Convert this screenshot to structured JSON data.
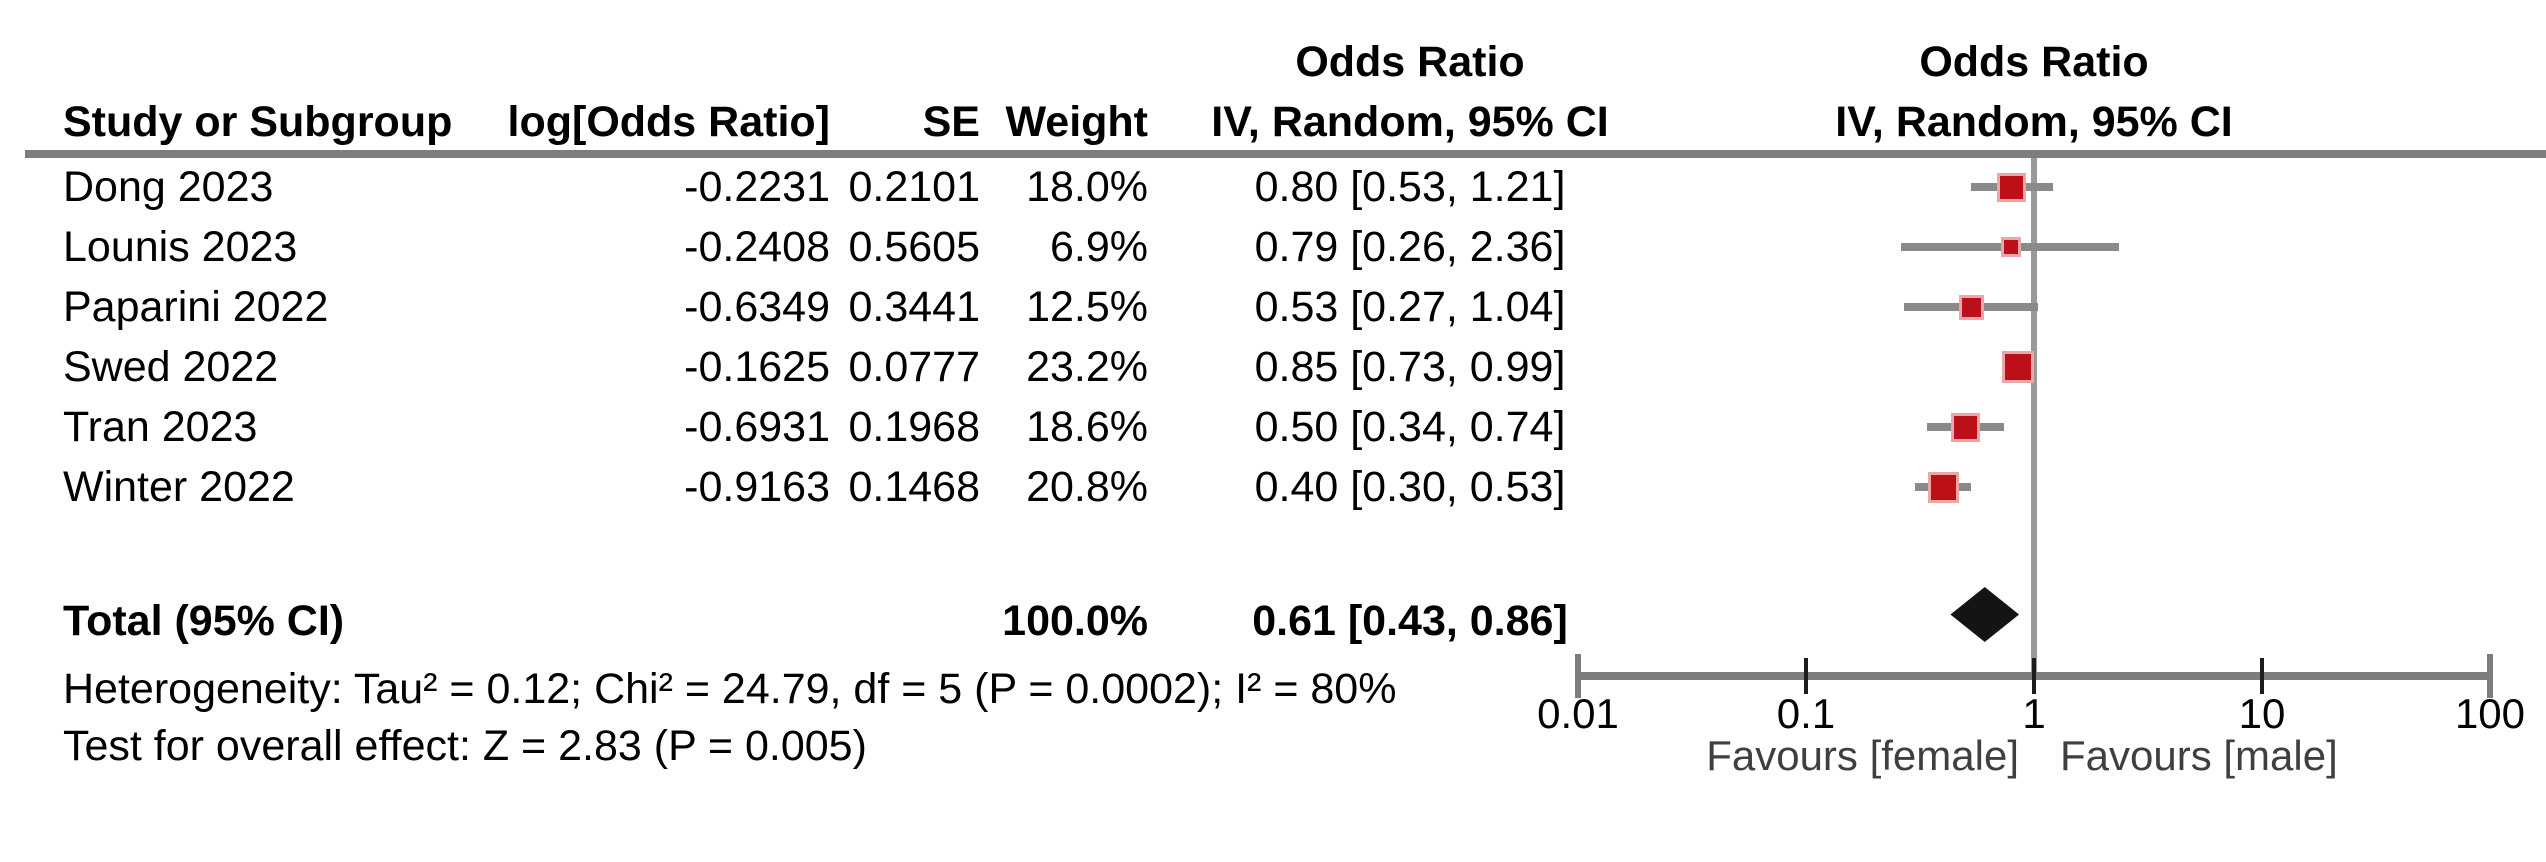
{
  "header": {
    "left_effect_title": "Odds Ratio",
    "right_effect_title": "Odds Ratio",
    "columns": {
      "study": "Study or Subgroup",
      "log_or": "log[Odds Ratio]",
      "se": "SE",
      "weight": "Weight",
      "left_method": "IV, Random, 95% CI",
      "right_method": "IV, Random, 95% CI"
    }
  },
  "studies": [
    {
      "name": "Dong 2023",
      "log_or": "-0.2231",
      "se": "0.2101",
      "weight": "18.0%",
      "weight_pct": 18.0,
      "ci_text": "0.80 [0.53, 1.21]",
      "or": 0.8,
      "ci_low": 0.53,
      "ci_high": 1.21
    },
    {
      "name": "Lounis 2023",
      "log_or": "-0.2408",
      "se": "0.5605",
      "weight": "6.9%",
      "weight_pct": 6.9,
      "ci_text": "0.79 [0.26, 2.36]",
      "or": 0.79,
      "ci_low": 0.26,
      "ci_high": 2.36
    },
    {
      "name": "Paparini 2022",
      "log_or": "-0.6349",
      "se": "0.3441",
      "weight": "12.5%",
      "weight_pct": 12.5,
      "ci_text": "0.53 [0.27, 1.04]",
      "or": 0.53,
      "ci_low": 0.27,
      "ci_high": 1.04
    },
    {
      "name": "Swed 2022",
      "log_or": "-0.1625",
      "se": "0.0777",
      "weight": "23.2%",
      "weight_pct": 23.2,
      "ci_text": "0.85 [0.73, 0.99]",
      "or": 0.85,
      "ci_low": 0.73,
      "ci_high": 0.99
    },
    {
      "name": "Tran 2023",
      "log_or": "-0.6931",
      "se": "0.1968",
      "weight": "18.6%",
      "weight_pct": 18.6,
      "ci_text": "0.50 [0.34, 0.74]",
      "or": 0.5,
      "ci_low": 0.34,
      "ci_high": 0.74
    },
    {
      "name": "Winter 2022",
      "log_or": "-0.9163",
      "se": "0.1468",
      "weight": "20.8%",
      "weight_pct": 20.8,
      "ci_text": "0.40 [0.30, 0.53]",
      "or": 0.4,
      "ci_low": 0.3,
      "ci_high": 0.53
    }
  ],
  "total": {
    "label": "Total (95% CI)",
    "weight": "100.0%",
    "ci_text": "0.61 [0.43, 0.86]",
    "or": 0.61,
    "ci_low": 0.43,
    "ci_high": 0.86
  },
  "footnotes": {
    "heterogeneity": "Heterogeneity: Tau² = 0.12; Chi² = 24.79, df = 5 (P = 0.0002); I² = 80%",
    "overall_effect": "Test for overall effect: Z = 2.83 (P = 0.005)"
  },
  "axis": {
    "scale": "log",
    "tick_labels": [
      "0.01",
      "0.1",
      "1",
      "10",
      "100"
    ],
    "tick_values": [
      0.01,
      0.1,
      1,
      10,
      100
    ],
    "favours_left": "Favours [female]",
    "favours_right": "Favours [male]"
  },
  "colors": {
    "marker": "#bb1018",
    "marker_halo": "#eba6aa",
    "ci_line": "#8a8a8a",
    "rule": "#7d7d7d",
    "center_line": "#9a9a9a",
    "diamond": "#141414"
  },
  "chart_data": {
    "type": "forest",
    "effect_measure": "Odds Ratio",
    "model": "IV, Random, 95% CI",
    "x_axis": {
      "scale": "log",
      "ticks": [
        0.01,
        0.1,
        1,
        10,
        100
      ],
      "null_line": 1,
      "label_left": "Favours [female]",
      "label_right": "Favours [male]"
    },
    "studies": [
      {
        "name": "Dong 2023",
        "log_or": -0.2231,
        "se": 0.2101,
        "weight_pct": 18.0,
        "or": 0.8,
        "ci95": [
          0.53,
          1.21
        ]
      },
      {
        "name": "Lounis 2023",
        "log_or": -0.2408,
        "se": 0.5605,
        "weight_pct": 6.9,
        "or": 0.79,
        "ci95": [
          0.26,
          2.36
        ]
      },
      {
        "name": "Paparini 2022",
        "log_or": -0.6349,
        "se": 0.3441,
        "weight_pct": 12.5,
        "or": 0.53,
        "ci95": [
          0.27,
          1.04
        ]
      },
      {
        "name": "Swed 2022",
        "log_or": -0.1625,
        "se": 0.0777,
        "weight_pct": 23.2,
        "or": 0.85,
        "ci95": [
          0.73,
          0.99
        ]
      },
      {
        "name": "Tran 2023",
        "log_or": -0.6931,
        "se": 0.1968,
        "weight_pct": 18.6,
        "or": 0.5,
        "ci95": [
          0.34,
          0.74
        ]
      },
      {
        "name": "Winter 2022",
        "log_or": -0.9163,
        "se": 0.1468,
        "weight_pct": 20.8,
        "or": 0.4,
        "ci95": [
          0.3,
          0.53
        ]
      }
    ],
    "total": {
      "weight_pct": 100.0,
      "or": 0.61,
      "ci95": [
        0.43,
        0.86
      ]
    },
    "heterogeneity": {
      "tau2": 0.12,
      "chi2": 24.79,
      "df": 5,
      "p": 0.0002,
      "i2_pct": 80
    },
    "overall_effect": {
      "z": 2.83,
      "p": 0.005
    }
  }
}
